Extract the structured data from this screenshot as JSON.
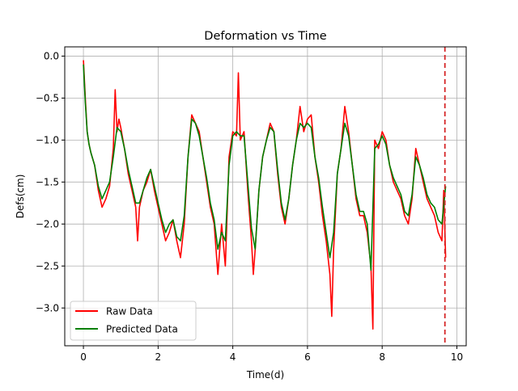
{
  "chart_data": {
    "type": "line",
    "title": "Deformation vs Time",
    "xlabel": "Time(d)",
    "ylabel": "Defs(cm)",
    "xlim": [
      -0.5,
      10.25
    ],
    "ylim": [
      -3.45,
      0.11
    ],
    "xticks": [
      0,
      2,
      4,
      6,
      8,
      10
    ],
    "xtick_labels": [
      "0",
      "2",
      "4",
      "6",
      "8",
      "10"
    ],
    "yticks": [
      0.0,
      -0.5,
      -1.0,
      -1.5,
      -2.0,
      -2.5,
      -3.0
    ],
    "ytick_labels": [
      "0.0",
      "−0.5",
      "−1.0",
      "−1.5",
      "−2.0",
      "−2.5",
      "−3.0"
    ],
    "grid": true,
    "legend_position": "lower left",
    "vline": {
      "x": 9.68,
      "color": "#d62728",
      "style": "dashed"
    },
    "series": [
      {
        "name": "Raw Data",
        "color": "#ff0000",
        "x": [
          0.0,
          0.05,
          0.1,
          0.15,
          0.2,
          0.3,
          0.4,
          0.5,
          0.6,
          0.7,
          0.8,
          0.85,
          0.9,
          0.95,
          1.0,
          1.1,
          1.2,
          1.3,
          1.4,
          1.45,
          1.5,
          1.6,
          1.7,
          1.8,
          1.9,
          2.0,
          2.1,
          2.2,
          2.3,
          2.4,
          2.5,
          2.6,
          2.7,
          2.8,
          2.9,
          3.0,
          3.1,
          3.2,
          3.3,
          3.4,
          3.5,
          3.6,
          3.65,
          3.7,
          3.8,
          3.9,
          4.0,
          4.1,
          4.15,
          4.2,
          4.3,
          4.4,
          4.5,
          4.55,
          4.6,
          4.7,
          4.8,
          4.9,
          5.0,
          5.1,
          5.2,
          5.3,
          5.4,
          5.5,
          5.6,
          5.7,
          5.8,
          5.9,
          6.0,
          6.1,
          6.2,
          6.3,
          6.4,
          6.5,
          6.6,
          6.65,
          6.7,
          6.8,
          6.9,
          7.0,
          7.1,
          7.2,
          7.3,
          7.4,
          7.5,
          7.6,
          7.7,
          7.75,
          7.8,
          7.9,
          8.0,
          8.1,
          8.2,
          8.3,
          8.4,
          8.5,
          8.6,
          8.7,
          8.8,
          8.9,
          9.0,
          9.1,
          9.2,
          9.3,
          9.4,
          9.5,
          9.6,
          9.65,
          9.7
        ],
        "y": [
          -0.05,
          -0.5,
          -0.9,
          -1.05,
          -1.15,
          -1.3,
          -1.6,
          -1.8,
          -1.7,
          -1.55,
          -1.1,
          -0.4,
          -0.9,
          -0.75,
          -0.85,
          -1.1,
          -1.4,
          -1.6,
          -1.8,
          -2.2,
          -1.8,
          -1.6,
          -1.5,
          -1.35,
          -1.6,
          -1.8,
          -2.0,
          -2.2,
          -2.1,
          -1.95,
          -2.2,
          -2.4,
          -2.0,
          -1.2,
          -0.7,
          -0.8,
          -0.9,
          -1.2,
          -1.5,
          -1.8,
          -2.0,
          -2.6,
          -2.3,
          -2.0,
          -2.5,
          -1.2,
          -0.9,
          -0.95,
          -0.2,
          -1.0,
          -0.9,
          -1.6,
          -2.2,
          -2.6,
          -2.3,
          -1.6,
          -1.2,
          -1.0,
          -0.8,
          -0.9,
          -1.4,
          -1.8,
          -2.0,
          -1.7,
          -1.3,
          -1.0,
          -0.6,
          -0.9,
          -0.75,
          -0.7,
          -1.2,
          -1.5,
          -1.9,
          -2.2,
          -2.6,
          -3.1,
          -2.3,
          -1.4,
          -1.1,
          -0.6,
          -0.9,
          -1.3,
          -1.7,
          -1.9,
          -1.9,
          -2.1,
          -2.5,
          -3.25,
          -1.0,
          -1.1,
          -0.9,
          -1.0,
          -1.3,
          -1.5,
          -1.6,
          -1.7,
          -1.9,
          -2.0,
          -1.7,
          -1.1,
          -1.3,
          -1.5,
          -1.7,
          -1.8,
          -1.9,
          -2.1,
          -2.2,
          -1.6,
          -2.4
        ]
      },
      {
        "name": "Predicted Data",
        "color": "#008000",
        "x": [
          0.0,
          0.05,
          0.1,
          0.15,
          0.2,
          0.3,
          0.4,
          0.5,
          0.6,
          0.7,
          0.8,
          0.9,
          1.0,
          1.1,
          1.2,
          1.3,
          1.4,
          1.5,
          1.6,
          1.7,
          1.8,
          1.9,
          2.0,
          2.1,
          2.2,
          2.3,
          2.4,
          2.5,
          2.6,
          2.7,
          2.8,
          2.9,
          3.0,
          3.1,
          3.2,
          3.3,
          3.4,
          3.5,
          3.6,
          3.7,
          3.8,
          3.9,
          4.0,
          4.1,
          4.2,
          4.3,
          4.4,
          4.5,
          4.6,
          4.7,
          4.8,
          4.9,
          5.0,
          5.1,
          5.2,
          5.3,
          5.4,
          5.5,
          5.6,
          5.7,
          5.8,
          5.9,
          6.0,
          6.1,
          6.2,
          6.3,
          6.4,
          6.5,
          6.6,
          6.7,
          6.8,
          6.9,
          7.0,
          7.1,
          7.2,
          7.3,
          7.4,
          7.5,
          7.6,
          7.7,
          7.8,
          7.9,
          8.0,
          8.1,
          8.2,
          8.3,
          8.4,
          8.5,
          8.6,
          8.7,
          8.8,
          8.9,
          9.0,
          9.1,
          9.2,
          9.3,
          9.4,
          9.5,
          9.6,
          9.7
        ],
        "y": [
          -0.1,
          -0.55,
          -0.9,
          -1.05,
          -1.15,
          -1.3,
          -1.55,
          -1.7,
          -1.6,
          -1.5,
          -1.2,
          -0.85,
          -0.9,
          -1.1,
          -1.35,
          -1.55,
          -1.75,
          -1.75,
          -1.6,
          -1.45,
          -1.35,
          -1.55,
          -1.75,
          -1.95,
          -2.1,
          -2.0,
          -1.95,
          -2.15,
          -2.2,
          -1.9,
          -1.2,
          -0.75,
          -0.8,
          -0.95,
          -1.2,
          -1.45,
          -1.75,
          -1.95,
          -2.3,
          -2.1,
          -2.2,
          -1.3,
          -0.95,
          -0.9,
          -0.95,
          -0.95,
          -1.5,
          -2.05,
          -2.3,
          -1.6,
          -1.2,
          -1.0,
          -0.85,
          -0.9,
          -1.35,
          -1.75,
          -1.95,
          -1.7,
          -1.3,
          -1.0,
          -0.8,
          -0.85,
          -0.8,
          -0.85,
          -1.2,
          -1.45,
          -1.8,
          -2.1,
          -2.4,
          -2.1,
          -1.4,
          -1.1,
          -0.8,
          -0.95,
          -1.3,
          -1.65,
          -1.85,
          -1.85,
          -2.0,
          -2.55,
          -1.1,
          -1.05,
          -0.95,
          -1.05,
          -1.3,
          -1.45,
          -1.55,
          -1.65,
          -1.85,
          -1.9,
          -1.65,
          -1.2,
          -1.3,
          -1.45,
          -1.65,
          -1.75,
          -1.8,
          -1.95,
          -2.0,
          -1.55
        ]
      }
    ]
  }
}
